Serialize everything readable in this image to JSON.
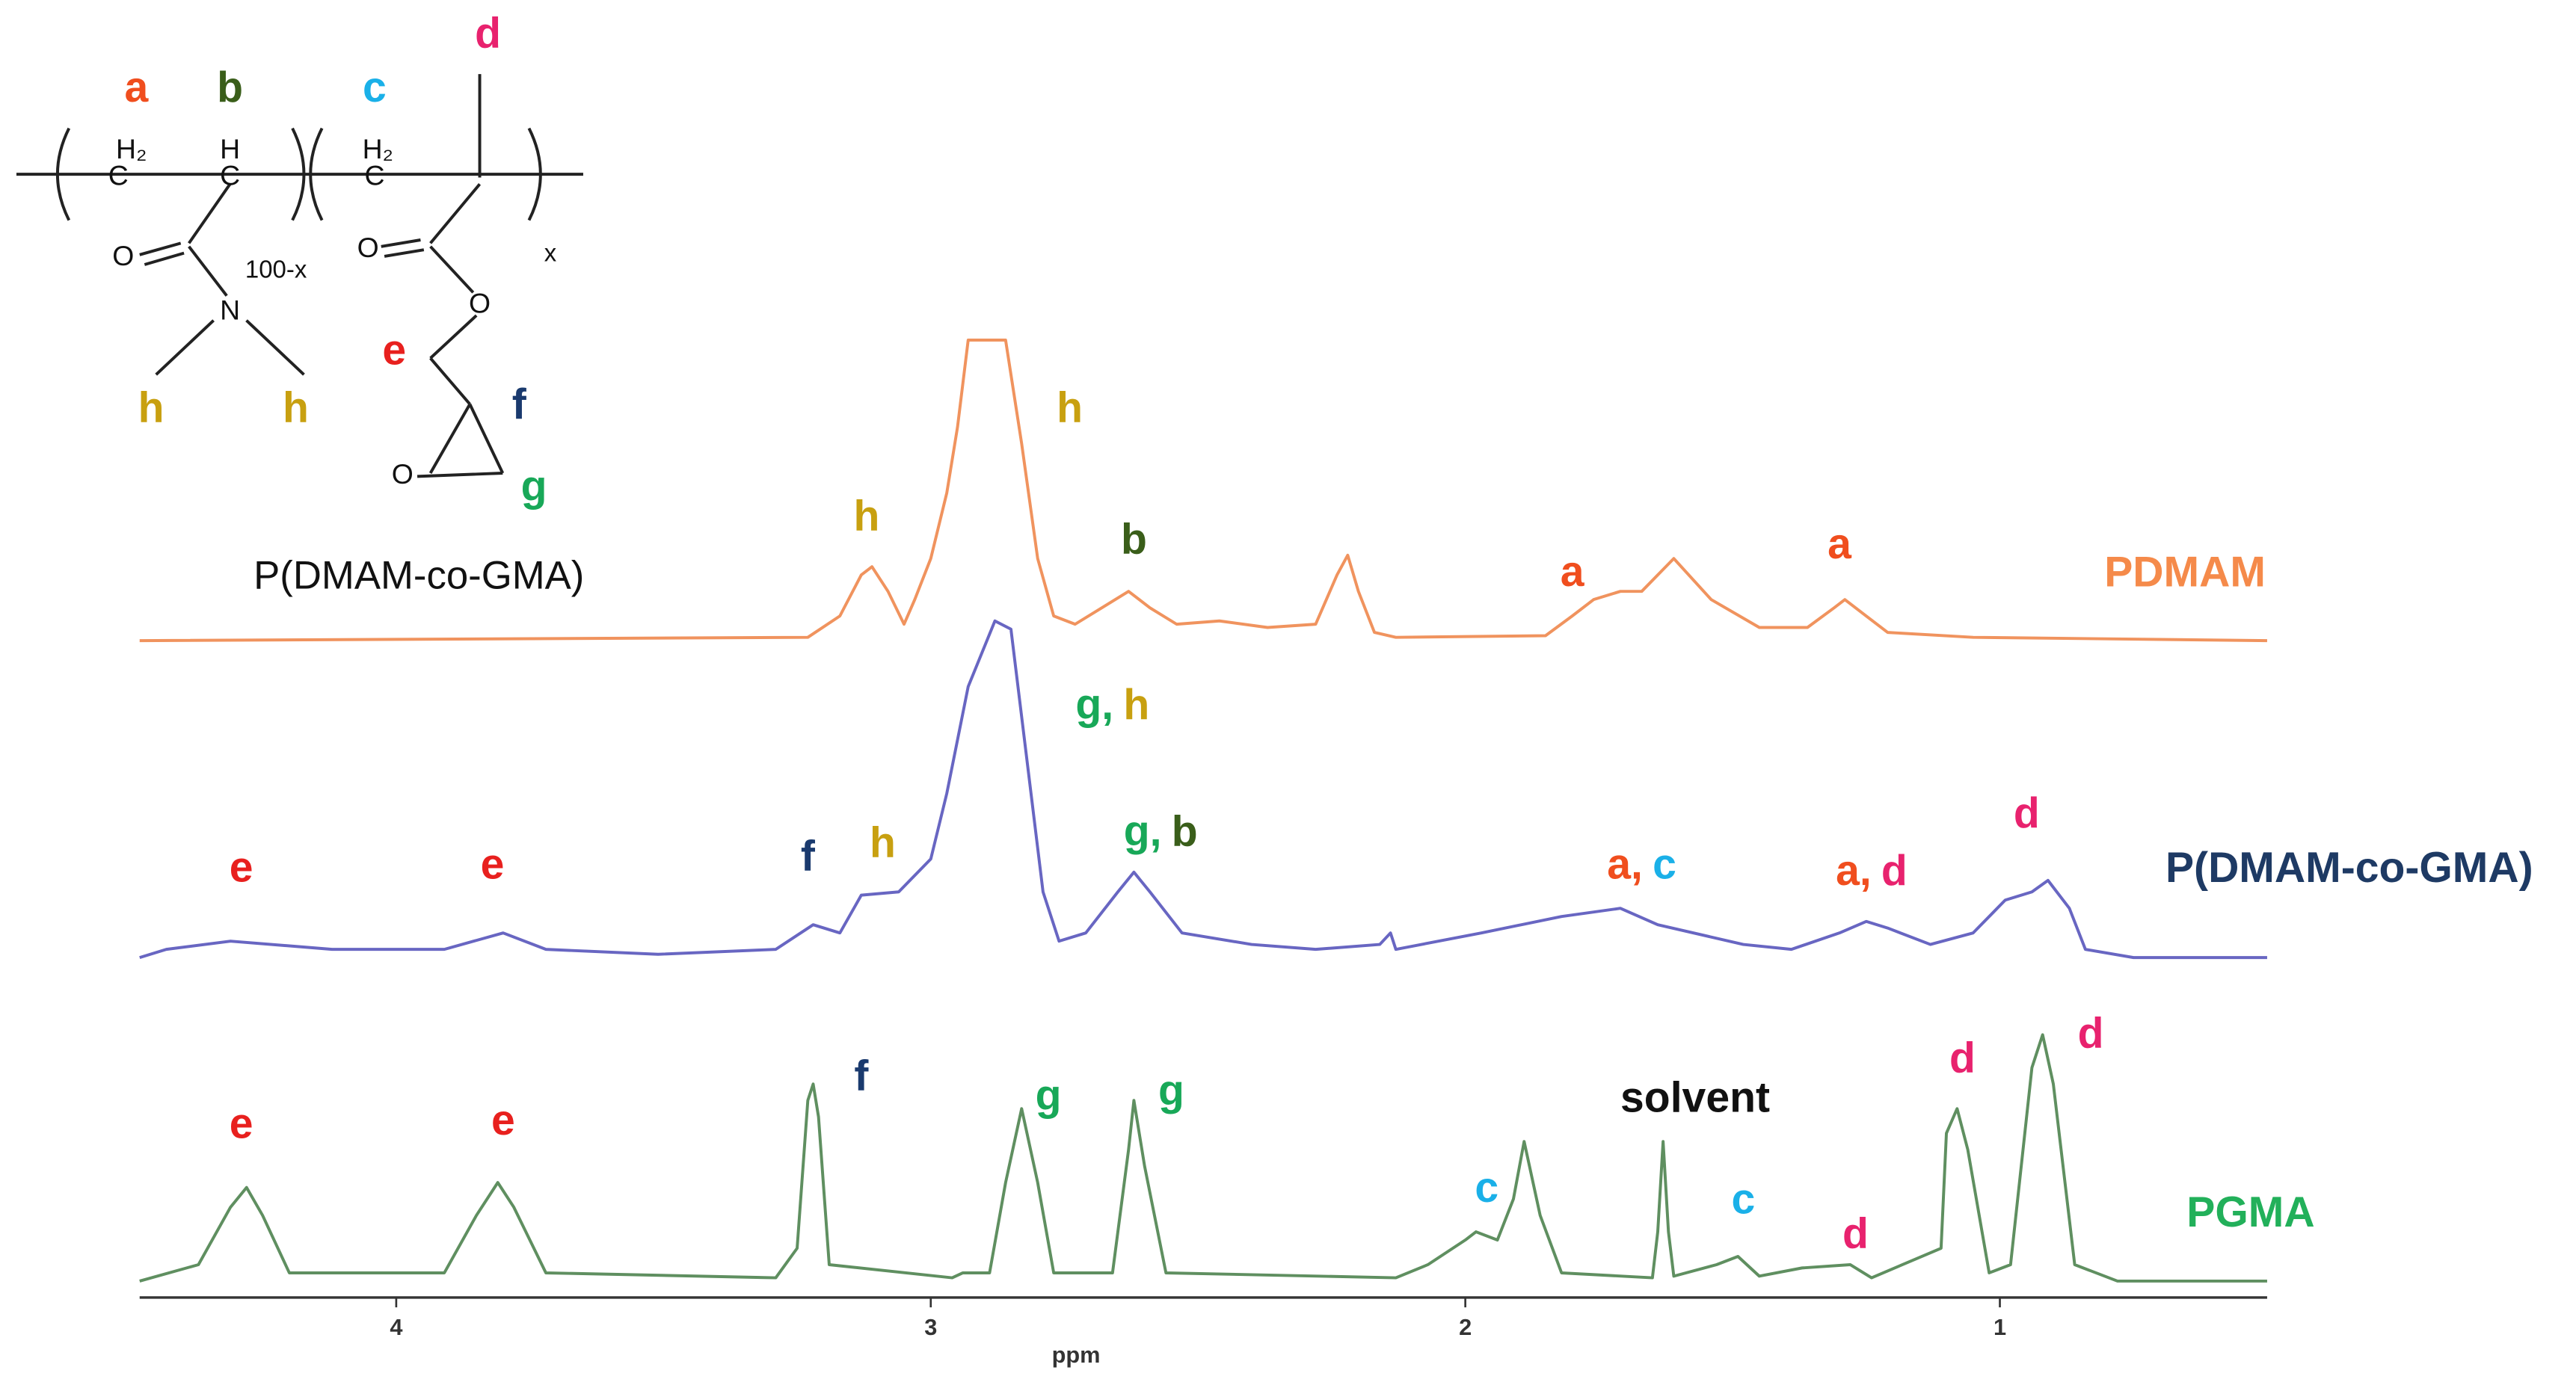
{
  "chart_data": {
    "type": "line",
    "xlabel": "ppm",
    "xlim": [
      4.48,
      0.5
    ],
    "xticks": [
      4,
      3,
      2,
      1
    ],
    "series": [
      {
        "name": "PDMAM",
        "color": "#f0935e",
        "label_color": "#f58a4a",
        "x": [
          4.48,
          3.23,
          3.17,
          3.13,
          3.11,
          3.08,
          3.05,
          3.03,
          3.0,
          2.97,
          2.95,
          2.93,
          2.86,
          2.83,
          2.8,
          2.77,
          2.73,
          2.68,
          2.63,
          2.59,
          2.54,
          2.46,
          2.37,
          2.28,
          2.24,
          2.22,
          2.2,
          2.17,
          2.13,
          1.85,
          1.8,
          1.76,
          1.71,
          1.67,
          1.61,
          1.54,
          1.45,
          1.36,
          1.31,
          1.29,
          1.25,
          1.21,
          1.05,
          0.5
        ],
        "values": [
          0,
          2,
          15,
          40,
          45,
          30,
          10,
          25,
          50,
          90,
          130,
          183,
          183,
          120,
          50,
          15,
          10,
          20,
          30,
          20,
          10,
          12,
          8,
          10,
          40,
          52,
          30,
          5,
          2,
          3,
          15,
          25,
          30,
          30,
          50,
          25,
          8,
          8,
          20,
          25,
          15,
          5,
          2,
          0
        ]
      },
      {
        "name": "P(DMAM-co-GMA)",
        "color": "#6866c2",
        "label_color": "#1e3a64",
        "x": [
          4.48,
          4.43,
          4.31,
          4.12,
          3.91,
          3.8,
          3.72,
          3.51,
          3.29,
          3.22,
          3.17,
          3.13,
          3.06,
          3.0,
          2.97,
          2.93,
          2.88,
          2.85,
          2.82,
          2.79,
          2.76,
          2.71,
          2.65,
          2.62,
          2.59,
          2.53,
          2.4,
          2.28,
          2.16,
          2.14,
          2.13,
          1.97,
          1.82,
          1.71,
          1.64,
          1.48,
          1.39,
          1.3,
          1.25,
          1.21,
          1.13,
          1.05,
          0.99,
          0.94,
          0.91,
          0.87,
          0.84,
          0.75,
          0.5
        ],
        "values": [
          0,
          5,
          10,
          5,
          5,
          15,
          5,
          2,
          5,
          20,
          15,
          38,
          40,
          60,
          100,
          165,
          205,
          200,
          120,
          40,
          10,
          15,
          40,
          52,
          40,
          15,
          8,
          5,
          8,
          15,
          5,
          15,
          25,
          30,
          20,
          8,
          5,
          15,
          22,
          18,
          8,
          15,
          35,
          40,
          47,
          30,
          5,
          0,
          0
        ]
      },
      {
        "name": "PGMA",
        "color": "#5f8f60",
        "label_color": "#22b05a",
        "x": [
          4.48,
          4.37,
          4.31,
          4.28,
          4.25,
          4.2,
          3.91,
          3.85,
          3.81,
          3.78,
          3.72,
          3.29,
          3.25,
          3.23,
          3.22,
          3.21,
          3.19,
          2.96,
          2.94,
          2.89,
          2.86,
          2.83,
          2.8,
          2.77,
          2.66,
          2.63,
          2.62,
          2.6,
          2.56,
          2.13,
          2.07,
          2.0,
          1.98,
          1.94,
          1.91,
          1.89,
          1.86,
          1.82,
          1.65,
          1.64,
          1.63,
          1.62,
          1.61,
          1.53,
          1.49,
          1.45,
          1.37,
          1.28,
          1.24,
          1.11,
          1.1,
          1.08,
          1.06,
          1.02,
          0.98,
          0.94,
          0.92,
          0.9,
          0.86,
          0.78,
          0.5
        ],
        "values": [
          0,
          10,
          45,
          57,
          40,
          5,
          5,
          40,
          60,
          45,
          5,
          2,
          20,
          110,
          120,
          100,
          10,
          2,
          5,
          5,
          60,
          105,
          60,
          5,
          5,
          80,
          110,
          70,
          5,
          2,
          10,
          25,
          30,
          25,
          50,
          85,
          40,
          5,
          2,
          30,
          85,
          30,
          3,
          10,
          15,
          3,
          8,
          10,
          2,
          20,
          90,
          105,
          80,
          5,
          10,
          130,
          150,
          120,
          10,
          0,
          0
        ]
      }
    ],
    "annotations": [
      {
        "series": 0,
        "x": 3.12,
        "y": 74,
        "parts": [
          {
            "text": "h",
            "color": "#c8a010"
          }
        ]
      },
      {
        "series": 0,
        "x": 2.74,
        "y": 140,
        "parts": [
          {
            "text": "h",
            "color": "#c8a010"
          }
        ]
      },
      {
        "series": 0,
        "x": 2.62,
        "y": 60,
        "parts": [
          {
            "text": "b",
            "color": "#3a5e1a"
          }
        ]
      },
      {
        "series": 0,
        "x": 1.8,
        "y": 40,
        "parts": [
          {
            "text": "a",
            "color": "#f04e1e"
          }
        ]
      },
      {
        "series": 0,
        "x": 1.3,
        "y": 57,
        "parts": [
          {
            "text": "a",
            "color": "#f04e1e"
          }
        ]
      },
      {
        "series": 1,
        "x": 4.29,
        "y": 53,
        "parts": [
          {
            "text": "e",
            "color": "#e8201e"
          }
        ]
      },
      {
        "series": 1,
        "x": 3.82,
        "y": 55,
        "parts": [
          {
            "text": "e",
            "color": "#e8201e"
          }
        ]
      },
      {
        "series": 1,
        "x": 3.23,
        "y": 60,
        "parts": [
          {
            "text": "f",
            "color": "#1a3a6e"
          }
        ]
      },
      {
        "series": 1,
        "x": 3.09,
        "y": 68,
        "parts": [
          {
            "text": "h",
            "color": "#c8a010"
          }
        ]
      },
      {
        "series": 1,
        "x": 2.66,
        "y": 152,
        "parts": [
          {
            "text": "g,",
            "color": "#18a858"
          },
          {
            "text": "h",
            "color": "#c8a010"
          }
        ]
      },
      {
        "series": 1,
        "x": 2.57,
        "y": 75,
        "parts": [
          {
            "text": "g,",
            "color": "#18a858"
          },
          {
            "text": "b",
            "color": "#3a5e1a"
          }
        ]
      },
      {
        "series": 1,
        "x": 1.67,
        "y": 55,
        "parts": [
          {
            "text": "a,",
            "color": "#f04e1e"
          },
          {
            "text": "c",
            "color": "#1ab0e8"
          }
        ]
      },
      {
        "series": 1,
        "x": 1.24,
        "y": 51,
        "parts": [
          {
            "text": "a,",
            "color": "#f04e1e"
          },
          {
            "text": "d",
            "color": "#e8226e"
          }
        ]
      },
      {
        "series": 1,
        "x": 0.95,
        "y": 86,
        "parts": [
          {
            "text": "d",
            "color": "#e8226e"
          }
        ]
      },
      {
        "series": 2,
        "x": 4.29,
        "y": 94,
        "parts": [
          {
            "text": "e",
            "color": "#e8201e"
          }
        ]
      },
      {
        "series": 2,
        "x": 3.8,
        "y": 96,
        "parts": [
          {
            "text": "e",
            "color": "#e8201e"
          }
        ]
      },
      {
        "series": 2,
        "x": 3.13,
        "y": 123,
        "parts": [
          {
            "text": "f",
            "color": "#1a3a6e"
          }
        ]
      },
      {
        "series": 2,
        "x": 2.78,
        "y": 111,
        "parts": [
          {
            "text": "g",
            "color": "#18a858"
          }
        ]
      },
      {
        "series": 2,
        "x": 2.55,
        "y": 114,
        "parts": [
          {
            "text": "g",
            "color": "#18a858"
          }
        ]
      },
      {
        "series": 2,
        "x": 1.57,
        "y": 110,
        "parts": [
          {
            "text": "solvent",
            "color": "#111111"
          }
        ]
      },
      {
        "series": 2,
        "x": 1.96,
        "y": 55,
        "parts": [
          {
            "text": "c",
            "color": "#1ab0e8"
          }
        ]
      },
      {
        "series": 2,
        "x": 1.48,
        "y": 48,
        "parts": [
          {
            "text": "c",
            "color": "#1ab0e8"
          }
        ]
      },
      {
        "series": 2,
        "x": 1.27,
        "y": 27,
        "parts": [
          {
            "text": "d",
            "color": "#e8226e"
          }
        ]
      },
      {
        "series": 2,
        "x": 1.07,
        "y": 134,
        "parts": [
          {
            "text": "d",
            "color": "#e8226e"
          }
        ]
      },
      {
        "series": 2,
        "x": 0.83,
        "y": 149,
        "parts": [
          {
            "text": "d",
            "color": "#e8226e"
          }
        ]
      }
    ]
  },
  "structure": {
    "name": "P(DMAM-co-GMA)",
    "atoms": [
      "a",
      "b",
      "c",
      "d",
      "H₂",
      "C",
      "H",
      "C",
      "H₂",
      "C",
      "100-x",
      "O",
      "N",
      "x",
      "O",
      "O",
      "e",
      "f",
      "O",
      "g",
      "h",
      "h"
    ]
  }
}
